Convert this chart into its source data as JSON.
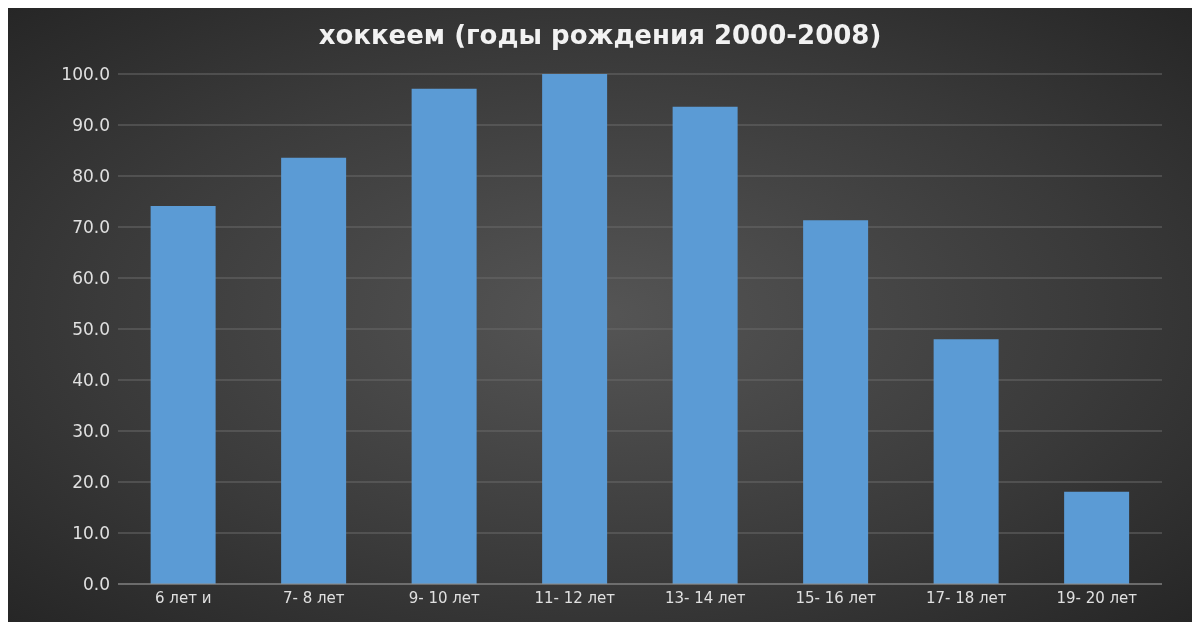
{
  "chart_data": {
    "type": "bar",
    "title": "хоккеем (годы рождения 2000-2008)",
    "categories": [
      "6 лет и",
      "7- 8 лет",
      "9- 10 лет",
      "11- 12 лет",
      "13- 14 лет",
      "15- 16 лет",
      "17- 18 лет",
      "19- 20 лет"
    ],
    "values": [
      74.1,
      83.6,
      97.1,
      100,
      93.6,
      71.3,
      48.0,
      18.1
    ],
    "color": "#5b9bd5",
    "ylim": [
      0,
      100
    ],
    "yticks": [
      {
        "value": 0,
        "label": "0.0"
      },
      {
        "value": 10,
        "label": "10.0"
      },
      {
        "value": 20,
        "label": "20.0"
      },
      {
        "value": 30,
        "label": "30.0"
      },
      {
        "value": 40,
        "label": "40.0"
      },
      {
        "value": 50,
        "label": "50.0"
      },
      {
        "value": 60,
        "label": "60.0"
      },
      {
        "value": 70,
        "label": "70.0"
      },
      {
        "value": 80,
        "label": "80.0"
      },
      {
        "value": 90,
        "label": "90.0"
      },
      {
        "value": 100,
        "label": "100.0"
      }
    ],
    "grid": "y"
  }
}
